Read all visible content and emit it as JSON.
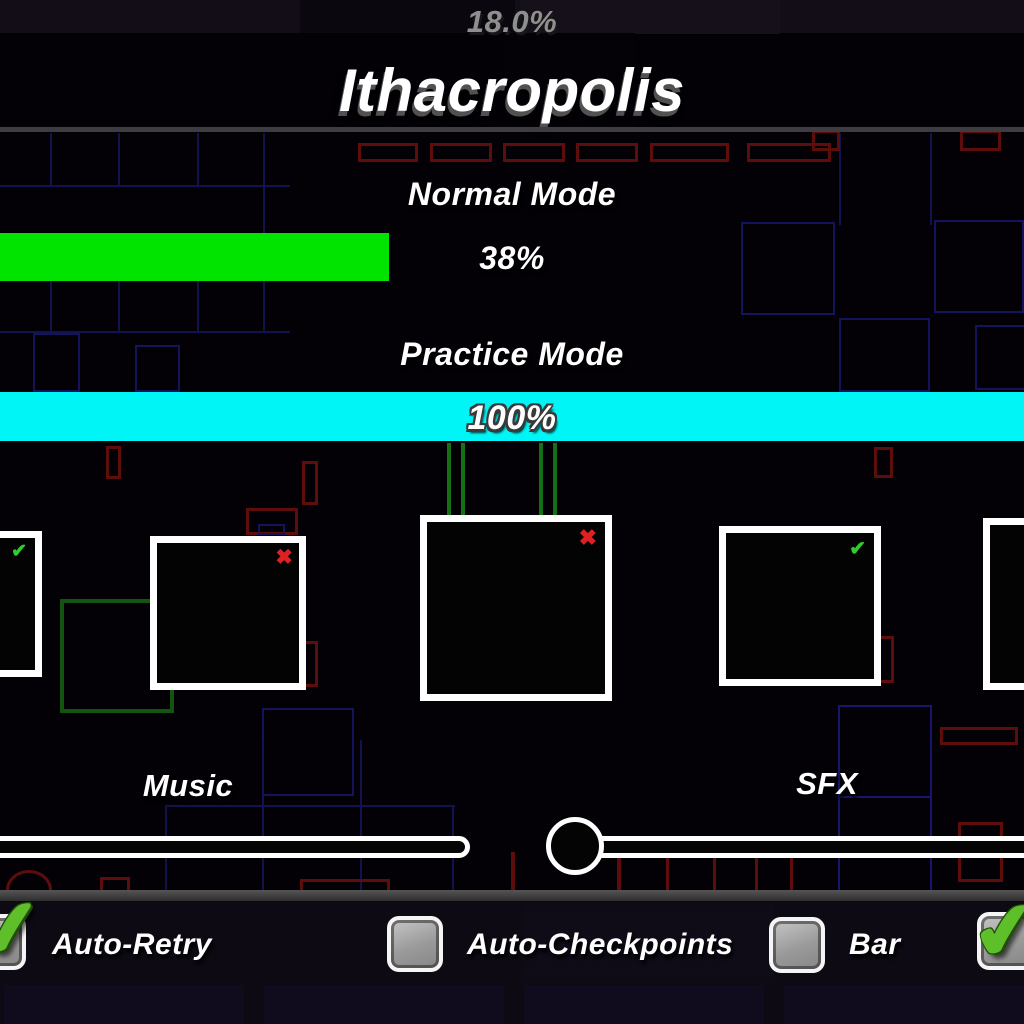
{
  "header": {
    "top_percent": "18.0%",
    "title": "Ithacropolis"
  },
  "normal_mode": {
    "label": "Normal Mode",
    "percent": 38,
    "percent_label": "38%"
  },
  "practice_mode": {
    "label": "Practice Mode",
    "percent": 100,
    "percent_label": "100%"
  },
  "marks": {
    "check": "✔",
    "cross": "✖"
  },
  "squares": [
    {
      "status": "completed",
      "mark": "✔"
    },
    {
      "status": "failed",
      "mark": "✖"
    },
    {
      "status": "failed",
      "mark": "✖"
    },
    {
      "status": "completed",
      "mark": "✔"
    },
    {
      "status": "none",
      "mark": ""
    }
  ],
  "audio": {
    "music_label": "Music",
    "sfx_label": "SFX"
  },
  "options": [
    {
      "label": "Auto-Retry",
      "checked": true,
      "glyph": "✔"
    },
    {
      "label": "Auto-Checkpoints",
      "checked": false,
      "glyph": ""
    },
    {
      "label": "Bar",
      "checked": false,
      "glyph": ""
    },
    {
      "label": "",
      "checked": true,
      "glyph": "✔"
    }
  ],
  "colors": {
    "normal_bar": "#00e400",
    "practice_bar": "#00f6f6",
    "check_green": "#2ecc2e",
    "cross_red": "#e02020",
    "checkbox_check": "#5fbf2a"
  }
}
